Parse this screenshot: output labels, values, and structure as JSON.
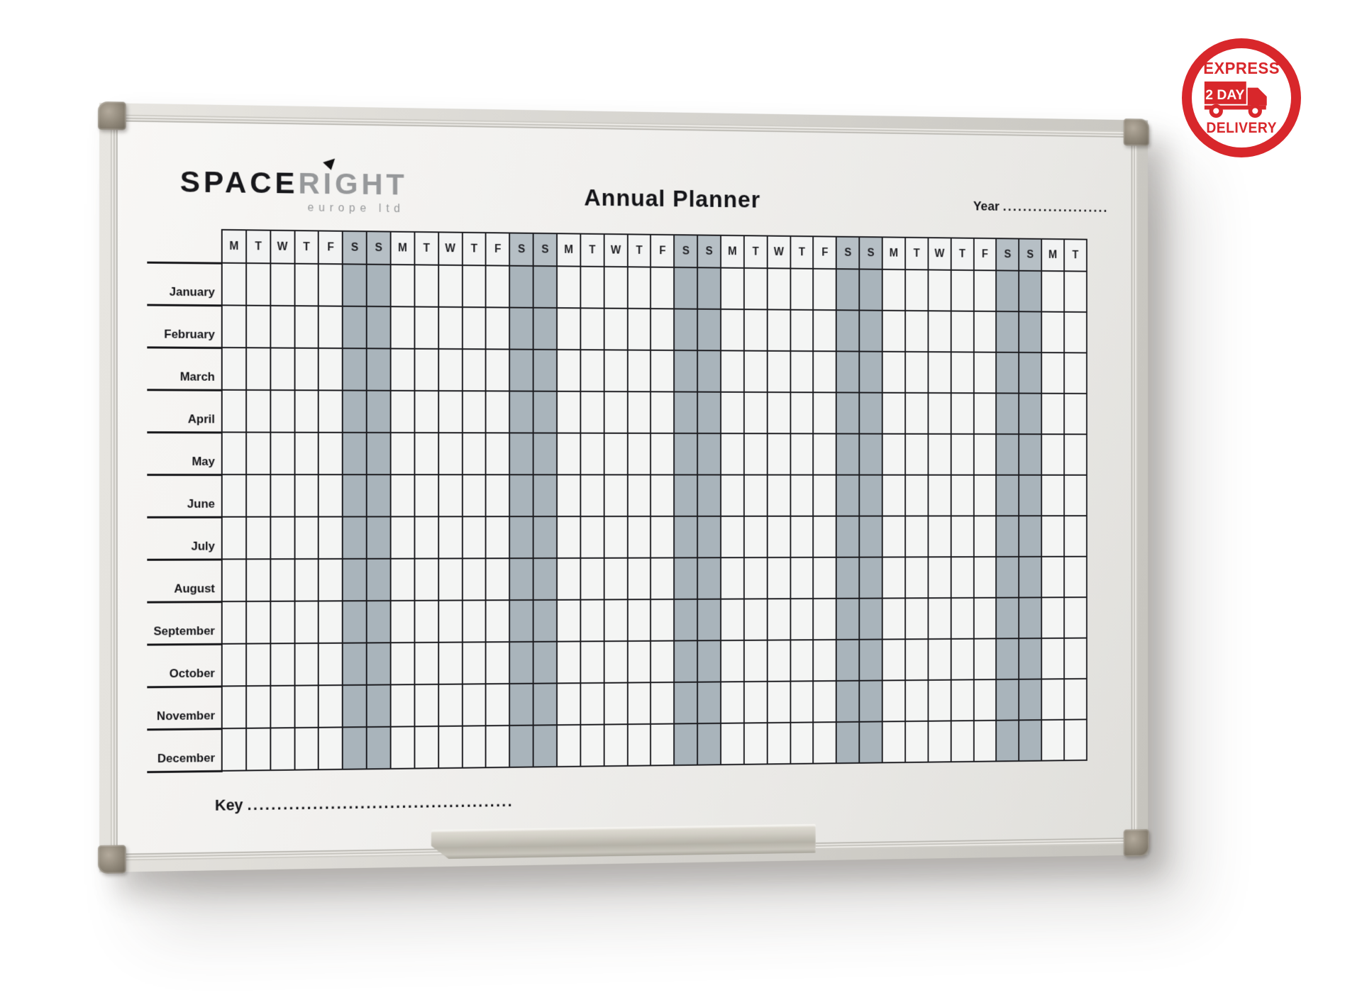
{
  "brand": {
    "name_bold": "SPACE",
    "name_light": "RIGHT",
    "subtitle": "europe ltd"
  },
  "title": "Annual Planner",
  "year": {
    "label": "Year",
    "dots": "....................."
  },
  "key": {
    "label": "Key",
    "dots": "............................................."
  },
  "badge": {
    "line1": "EXPRESS",
    "line2": "2 DAY",
    "line3": "DELIVERY",
    "color": "#d8272b"
  },
  "planner": {
    "day_headers": [
      "M",
      "T",
      "W",
      "T",
      "F",
      "S",
      "S",
      "M",
      "T",
      "W",
      "T",
      "F",
      "S",
      "S",
      "M",
      "T",
      "W",
      "T",
      "F",
      "S",
      "S",
      "M",
      "T",
      "W",
      "T",
      "F",
      "S",
      "S",
      "M",
      "T",
      "W",
      "T",
      "F",
      "S",
      "S",
      "M",
      "T"
    ],
    "weekend_columns": [
      5,
      6,
      12,
      13,
      19,
      20,
      26,
      27,
      33,
      34
    ],
    "months": [
      "January",
      "February",
      "March",
      "April",
      "May",
      "June",
      "July",
      "August",
      "September",
      "October",
      "November",
      "December"
    ],
    "weekend_color": "#a9b4bb",
    "grid_line_color": "#1b1b1f"
  }
}
